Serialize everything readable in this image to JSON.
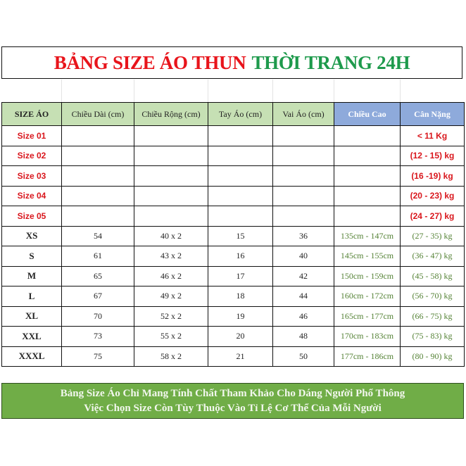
{
  "title": {
    "part1": "BẢNG SIZE ÁO THUN",
    "part2": "THỜI TRANG 24H",
    "color1": "#e8141b",
    "color2": "#1e9a4c"
  },
  "headers": [
    "SIZE ÁO",
    "Chiều Dài (cm)",
    "Chiều Rộng (cm)",
    "Tay Áo (cm)",
    "Vai Áo (cm)",
    "Chiều Cao",
    "Cân Nặng"
  ],
  "kid_rows": [
    {
      "size": "Size 01",
      "weight": "<  11 Kg"
    },
    {
      "size": "Size 02",
      "weight": "(12 - 15) kg"
    },
    {
      "size": "Size 03",
      "weight": "(16 -19) kg"
    },
    {
      "size": "Size 04",
      "weight": "(20 - 23) kg"
    },
    {
      "size": "Size 05",
      "weight": "(24 - 27) kg"
    }
  ],
  "adult_rows": [
    {
      "size": "XS",
      "length": "54",
      "width": "40 x 2",
      "sleeve": "15",
      "shoulder": "36",
      "height": "135cm - 147cm",
      "weight": "(27 - 35) kg"
    },
    {
      "size": "S",
      "length": "61",
      "width": "43 x 2",
      "sleeve": "16",
      "shoulder": "40",
      "height": "145cm - 155cm",
      "weight": "(36 - 47) kg"
    },
    {
      "size": "M",
      "length": "65",
      "width": "46 x 2",
      "sleeve": "17",
      "shoulder": "42",
      "height": "150cm - 159cm",
      "weight": "(45 - 58) kg"
    },
    {
      "size": "L",
      "length": "67",
      "width": "49 x 2",
      "sleeve": "18",
      "shoulder": "44",
      "height": "160cm - 172cm",
      "weight": "(56 - 70) kg"
    },
    {
      "size": "XL",
      "length": "70",
      "width": "52 x 2",
      "sleeve": "19",
      "shoulder": "46",
      "height": "165cm - 177cm",
      "weight": "(66 - 75) kg"
    },
    {
      "size": "XXL",
      "length": "73",
      "width": "55 x 2",
      "sleeve": "20",
      "shoulder": "48",
      "height": "170cm - 183cm",
      "weight": "(75 - 83) kg"
    },
    {
      "size": "XXXL",
      "length": "75",
      "width": "58 x 2",
      "sleeve": "21",
      "shoulder": "50",
      "height": "177cm - 186cm",
      "weight": "(80 - 90) kg"
    }
  ],
  "note": {
    "line1": "Bảng Size Áo Chỉ Mang Tính Chất Tham Khảo Cho Dáng Người Phổ Thông",
    "line2": "Việc Chọn Size Còn Tùy Thuộc Vào Tỉ Lệ Cơ Thể Của Mỗi Người"
  }
}
